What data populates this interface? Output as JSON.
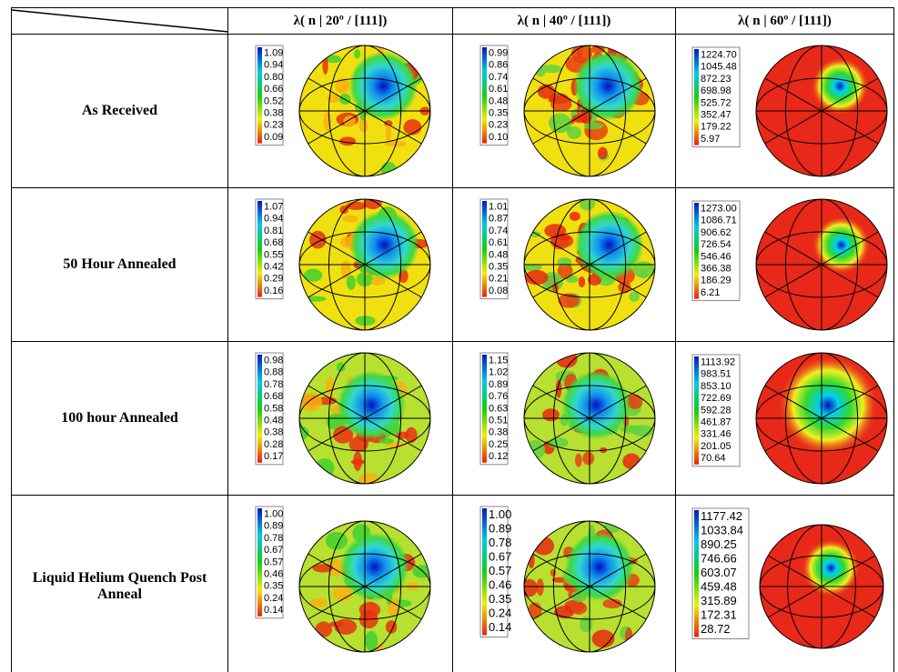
{
  "header": {
    "columns": [
      "λ( n | 20º / [111])",
      "λ( n | 40º / [111])",
      "λ( n | 60º / [111])"
    ]
  },
  "rows": [
    {
      "label": "As Received",
      "cells": [
        {
          "legend": [
            "1.09",
            "0.94",
            "0.80",
            "0.66",
            "0.52",
            "0.38",
            "0.23",
            "0.09"
          ]
        },
        {
          "legend": [
            "0.99",
            "0.86",
            "0.74",
            "0.61",
            "0.48",
            "0.35",
            "0.23",
            "0.10"
          ]
        },
        {
          "legend": [
            "1224.70",
            "1045.48",
            "872.23",
            "698.98",
            "525.72",
            "352.47",
            "179.22",
            "5.97"
          ]
        }
      ]
    },
    {
      "label": "50 Hour Annealed",
      "cells": [
        {
          "legend": [
            "1.07",
            "0.94",
            "0.81",
            "0.68",
            "0.55",
            "0.42",
            "0.29",
            "0.16"
          ]
        },
        {
          "legend": [
            "1.01",
            "0.87",
            "0.74",
            "0.61",
            "0.48",
            "0.35",
            "0.21",
            "0.08"
          ]
        },
        {
          "legend": [
            "1273.00",
            "1086.71",
            "906.62",
            "726.54",
            "546.46",
            "366.38",
            "186.29",
            "6.21"
          ]
        }
      ]
    },
    {
      "label": "100 hour Annealed",
      "cells": [
        {
          "legend": [
            "0.98",
            "0.88",
            "0.78",
            "0.68",
            "0.58",
            "0.48",
            "0.38",
            "0.28",
            "0.17"
          ]
        },
        {
          "legend": [
            "1.15",
            "1.02",
            "0.89",
            "0.76",
            "0.63",
            "0.51",
            "0.38",
            "0.25",
            "0.12"
          ]
        },
        {
          "legend": [
            "1113.92",
            "983.51",
            "853.10",
            "722.69",
            "592.28",
            "461.87",
            "331.46",
            "201.05",
            "70.64"
          ]
        }
      ]
    },
    {
      "label": "Liquid Helium Quench Post Anneal",
      "cells": [
        {
          "legend": [
            "1.00",
            "0.89",
            "0.78",
            "0.67",
            "0.57",
            "0.46",
            "0.35",
            "0.24",
            "0.14"
          ]
        },
        {
          "legend": [
            "1.00",
            "0.89",
            "0.78",
            "0.67",
            "0.57",
            "0.46",
            "0.35",
            "0.24",
            "0.14"
          ]
        },
        {
          "legend": [
            "1177.42",
            "1033.84",
            "890.25",
            "746.66",
            "603.07",
            "459.48",
            "315.89",
            "172.31",
            "28.72"
          ]
        }
      ]
    }
  ]
}
